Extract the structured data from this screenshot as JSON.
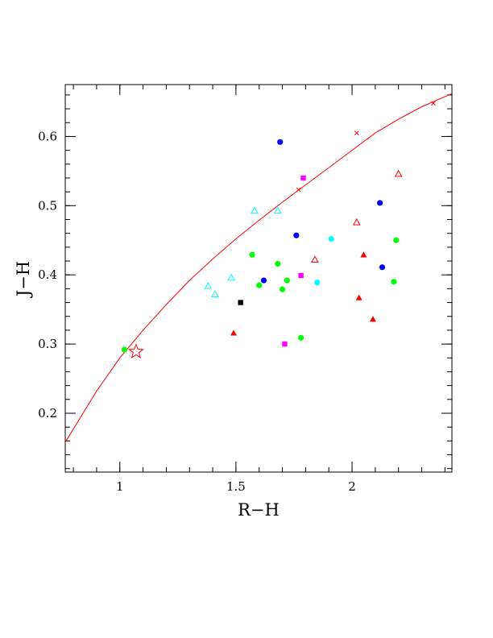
{
  "chart_data": {
    "type": "scatter",
    "title": "",
    "xlabel": "R−H",
    "ylabel": "J−H",
    "xlim": [
      0.765,
      2.43
    ],
    "ylim": [
      0.115,
      0.675
    ],
    "x_ticks": [
      1,
      1.5,
      2
    ],
    "x_tick_labels": [
      "1",
      "1.5",
      "2"
    ],
    "y_ticks": [
      0.2,
      0.3,
      0.4,
      0.5,
      0.6
    ],
    "y_tick_labels": [
      "0.2",
      "0.3",
      "0.4",
      "0.5",
      "0.6"
    ],
    "grid": false,
    "legend": "none",
    "curve": {
      "color": "#ff0000",
      "x": [
        0.765,
        0.9,
        1.0,
        1.1,
        1.2,
        1.3,
        1.4,
        1.5,
        1.6,
        1.7,
        1.8,
        1.9,
        2.0,
        2.1,
        2.2,
        2.3,
        2.43
      ],
      "y": [
        0.158,
        0.232,
        0.28,
        0.32,
        0.357,
        0.392,
        0.423,
        0.452,
        0.479,
        0.505,
        0.53,
        0.555,
        0.58,
        0.605,
        0.625,
        0.643,
        0.662
      ],
      "markers_x": [
        1.77,
        2.02,
        2.35
      ],
      "markers_y": [
        0.523,
        0.605,
        0.648
      ]
    },
    "series": [
      {
        "marker": "filled-circle",
        "color": "#0000ff",
        "x": [
          1.69,
          2.12,
          1.76,
          1.62,
          2.13
        ],
        "y": [
          0.592,
          0.504,
          0.457,
          0.392,
          0.411
        ]
      },
      {
        "marker": "filled-circle",
        "color": "#00ff00",
        "x": [
          1.02,
          1.57,
          1.68,
          1.6,
          1.72,
          1.7,
          1.78,
          2.18,
          2.19
        ],
        "y": [
          0.292,
          0.429,
          0.416,
          0.385,
          0.392,
          0.379,
          0.309,
          0.39,
          0.45
        ]
      },
      {
        "marker": "filled-circle",
        "color": "#00ffff",
        "x": [
          1.91,
          1.85
        ],
        "y": [
          0.452,
          0.389
        ]
      },
      {
        "marker": "open-triangle",
        "color": "#00ffff",
        "x": [
          1.58,
          1.68,
          1.38,
          1.41,
          1.48
        ],
        "y": [
          0.493,
          0.493,
          0.384,
          0.372,
          0.396
        ]
      },
      {
        "marker": "open-triangle",
        "color": "#ff0000",
        "x": [
          2.2,
          2.02,
          1.84
        ],
        "y": [
          0.546,
          0.476,
          0.422
        ]
      },
      {
        "marker": "filled-triangle",
        "color": "#ff0000",
        "x": [
          1.49,
          2.05,
          2.03,
          2.09
        ],
        "y": [
          0.316,
          0.429,
          0.367,
          0.336
        ]
      },
      {
        "marker": "filled-square",
        "color": "#ff00ff",
        "x": [
          1.79,
          1.78,
          1.71
        ],
        "y": [
          0.54,
          0.399,
          0.3
        ]
      },
      {
        "marker": "filled-square",
        "color": "#000000",
        "x": [
          1.52
        ],
        "y": [
          0.36
        ]
      },
      {
        "marker": "open-star",
        "color": "#ff0000",
        "x": [
          1.07
        ],
        "y": [
          0.289
        ]
      }
    ]
  }
}
